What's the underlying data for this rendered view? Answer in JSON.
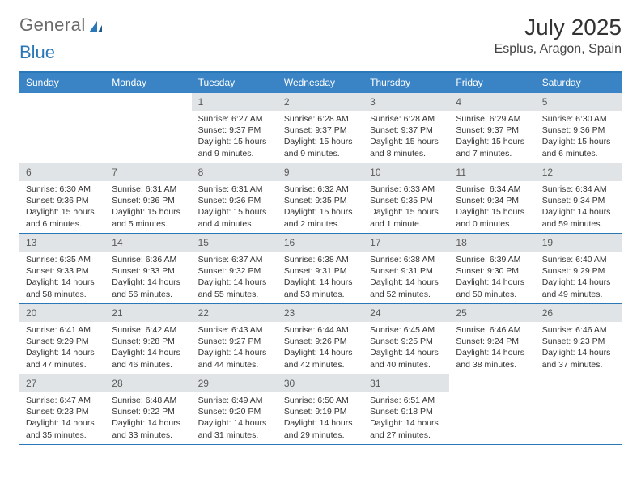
{
  "logo": {
    "text_a": "General",
    "text_b": "Blue"
  },
  "title": "July 2025",
  "location": "Esplus, Aragon, Spain",
  "colors": {
    "header_bg": "#3a84c5",
    "header_border": "#2b78b8",
    "num_bg": "#e1e4e6",
    "text": "#333333",
    "logo_gray": "#6a6a6a",
    "logo_blue": "#2b78b8"
  },
  "day_names": [
    "Sunday",
    "Monday",
    "Tuesday",
    "Wednesday",
    "Thursday",
    "Friday",
    "Saturday"
  ],
  "weeks": [
    [
      {
        "num": "",
        "sunrise": "",
        "sunset": "",
        "daylight": ""
      },
      {
        "num": "",
        "sunrise": "",
        "sunset": "",
        "daylight": ""
      },
      {
        "num": "1",
        "sunrise": "Sunrise: 6:27 AM",
        "sunset": "Sunset: 9:37 PM",
        "daylight": "Daylight: 15 hours and 9 minutes."
      },
      {
        "num": "2",
        "sunrise": "Sunrise: 6:28 AM",
        "sunset": "Sunset: 9:37 PM",
        "daylight": "Daylight: 15 hours and 9 minutes."
      },
      {
        "num": "3",
        "sunrise": "Sunrise: 6:28 AM",
        "sunset": "Sunset: 9:37 PM",
        "daylight": "Daylight: 15 hours and 8 minutes."
      },
      {
        "num": "4",
        "sunrise": "Sunrise: 6:29 AM",
        "sunset": "Sunset: 9:37 PM",
        "daylight": "Daylight: 15 hours and 7 minutes."
      },
      {
        "num": "5",
        "sunrise": "Sunrise: 6:30 AM",
        "sunset": "Sunset: 9:36 PM",
        "daylight": "Daylight: 15 hours and 6 minutes."
      }
    ],
    [
      {
        "num": "6",
        "sunrise": "Sunrise: 6:30 AM",
        "sunset": "Sunset: 9:36 PM",
        "daylight": "Daylight: 15 hours and 6 minutes."
      },
      {
        "num": "7",
        "sunrise": "Sunrise: 6:31 AM",
        "sunset": "Sunset: 9:36 PM",
        "daylight": "Daylight: 15 hours and 5 minutes."
      },
      {
        "num": "8",
        "sunrise": "Sunrise: 6:31 AM",
        "sunset": "Sunset: 9:36 PM",
        "daylight": "Daylight: 15 hours and 4 minutes."
      },
      {
        "num": "9",
        "sunrise": "Sunrise: 6:32 AM",
        "sunset": "Sunset: 9:35 PM",
        "daylight": "Daylight: 15 hours and 2 minutes."
      },
      {
        "num": "10",
        "sunrise": "Sunrise: 6:33 AM",
        "sunset": "Sunset: 9:35 PM",
        "daylight": "Daylight: 15 hours and 1 minute."
      },
      {
        "num": "11",
        "sunrise": "Sunrise: 6:34 AM",
        "sunset": "Sunset: 9:34 PM",
        "daylight": "Daylight: 15 hours and 0 minutes."
      },
      {
        "num": "12",
        "sunrise": "Sunrise: 6:34 AM",
        "sunset": "Sunset: 9:34 PM",
        "daylight": "Daylight: 14 hours and 59 minutes."
      }
    ],
    [
      {
        "num": "13",
        "sunrise": "Sunrise: 6:35 AM",
        "sunset": "Sunset: 9:33 PM",
        "daylight": "Daylight: 14 hours and 58 minutes."
      },
      {
        "num": "14",
        "sunrise": "Sunrise: 6:36 AM",
        "sunset": "Sunset: 9:33 PM",
        "daylight": "Daylight: 14 hours and 56 minutes."
      },
      {
        "num": "15",
        "sunrise": "Sunrise: 6:37 AM",
        "sunset": "Sunset: 9:32 PM",
        "daylight": "Daylight: 14 hours and 55 minutes."
      },
      {
        "num": "16",
        "sunrise": "Sunrise: 6:38 AM",
        "sunset": "Sunset: 9:31 PM",
        "daylight": "Daylight: 14 hours and 53 minutes."
      },
      {
        "num": "17",
        "sunrise": "Sunrise: 6:38 AM",
        "sunset": "Sunset: 9:31 PM",
        "daylight": "Daylight: 14 hours and 52 minutes."
      },
      {
        "num": "18",
        "sunrise": "Sunrise: 6:39 AM",
        "sunset": "Sunset: 9:30 PM",
        "daylight": "Daylight: 14 hours and 50 minutes."
      },
      {
        "num": "19",
        "sunrise": "Sunrise: 6:40 AM",
        "sunset": "Sunset: 9:29 PM",
        "daylight": "Daylight: 14 hours and 49 minutes."
      }
    ],
    [
      {
        "num": "20",
        "sunrise": "Sunrise: 6:41 AM",
        "sunset": "Sunset: 9:29 PM",
        "daylight": "Daylight: 14 hours and 47 minutes."
      },
      {
        "num": "21",
        "sunrise": "Sunrise: 6:42 AM",
        "sunset": "Sunset: 9:28 PM",
        "daylight": "Daylight: 14 hours and 46 minutes."
      },
      {
        "num": "22",
        "sunrise": "Sunrise: 6:43 AM",
        "sunset": "Sunset: 9:27 PM",
        "daylight": "Daylight: 14 hours and 44 minutes."
      },
      {
        "num": "23",
        "sunrise": "Sunrise: 6:44 AM",
        "sunset": "Sunset: 9:26 PM",
        "daylight": "Daylight: 14 hours and 42 minutes."
      },
      {
        "num": "24",
        "sunrise": "Sunrise: 6:45 AM",
        "sunset": "Sunset: 9:25 PM",
        "daylight": "Daylight: 14 hours and 40 minutes."
      },
      {
        "num": "25",
        "sunrise": "Sunrise: 6:46 AM",
        "sunset": "Sunset: 9:24 PM",
        "daylight": "Daylight: 14 hours and 38 minutes."
      },
      {
        "num": "26",
        "sunrise": "Sunrise: 6:46 AM",
        "sunset": "Sunset: 9:23 PM",
        "daylight": "Daylight: 14 hours and 37 minutes."
      }
    ],
    [
      {
        "num": "27",
        "sunrise": "Sunrise: 6:47 AM",
        "sunset": "Sunset: 9:23 PM",
        "daylight": "Daylight: 14 hours and 35 minutes."
      },
      {
        "num": "28",
        "sunrise": "Sunrise: 6:48 AM",
        "sunset": "Sunset: 9:22 PM",
        "daylight": "Daylight: 14 hours and 33 minutes."
      },
      {
        "num": "29",
        "sunrise": "Sunrise: 6:49 AM",
        "sunset": "Sunset: 9:20 PM",
        "daylight": "Daylight: 14 hours and 31 minutes."
      },
      {
        "num": "30",
        "sunrise": "Sunrise: 6:50 AM",
        "sunset": "Sunset: 9:19 PM",
        "daylight": "Daylight: 14 hours and 29 minutes."
      },
      {
        "num": "31",
        "sunrise": "Sunrise: 6:51 AM",
        "sunset": "Sunset: 9:18 PM",
        "daylight": "Daylight: 14 hours and 27 minutes."
      },
      {
        "num": "",
        "sunrise": "",
        "sunset": "",
        "daylight": ""
      },
      {
        "num": "",
        "sunrise": "",
        "sunset": "",
        "daylight": ""
      }
    ]
  ]
}
